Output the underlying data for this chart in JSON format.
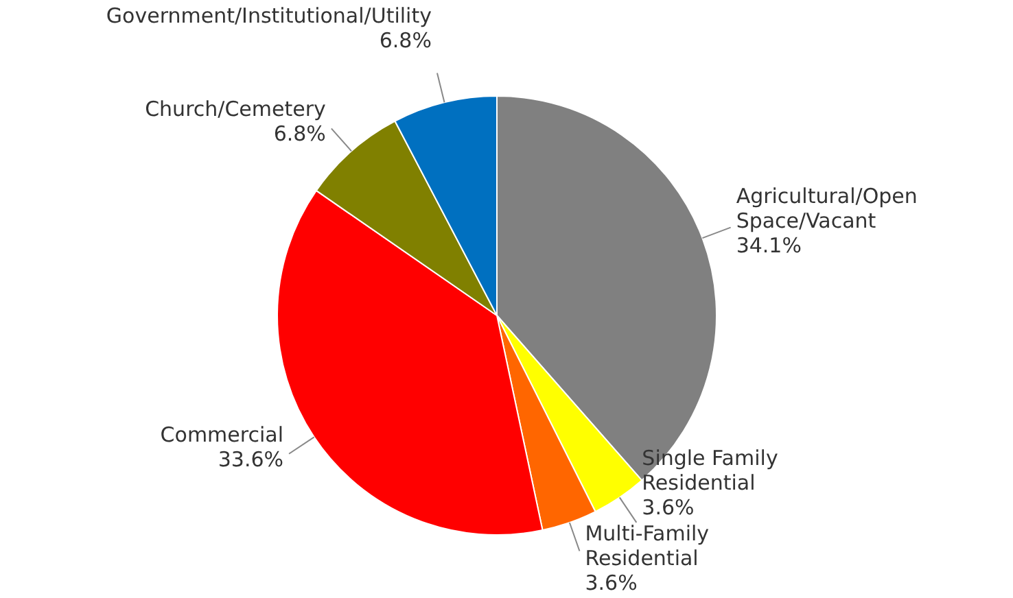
{
  "chart_data": {
    "type": "pie",
    "categories": [
      "Agricultural/Open Space/Vacant",
      "Single Family Residential",
      "Multi-Family Residential",
      "Commercial",
      "Church/Cemetery",
      "Government/Institutional/Utility"
    ],
    "values": [
      34.1,
      3.6,
      3.6,
      33.6,
      6.8,
      6.8
    ],
    "value_labels": [
      "34.1%",
      "3.6%",
      "3.6%",
      "33.6%",
      "6.8%",
      "6.8%"
    ],
    "colors": [
      "#808080",
      "#ffff00",
      "#ff6600",
      "#ff0000",
      "#808000",
      "#0070c0"
    ],
    "legend": false
  }
}
